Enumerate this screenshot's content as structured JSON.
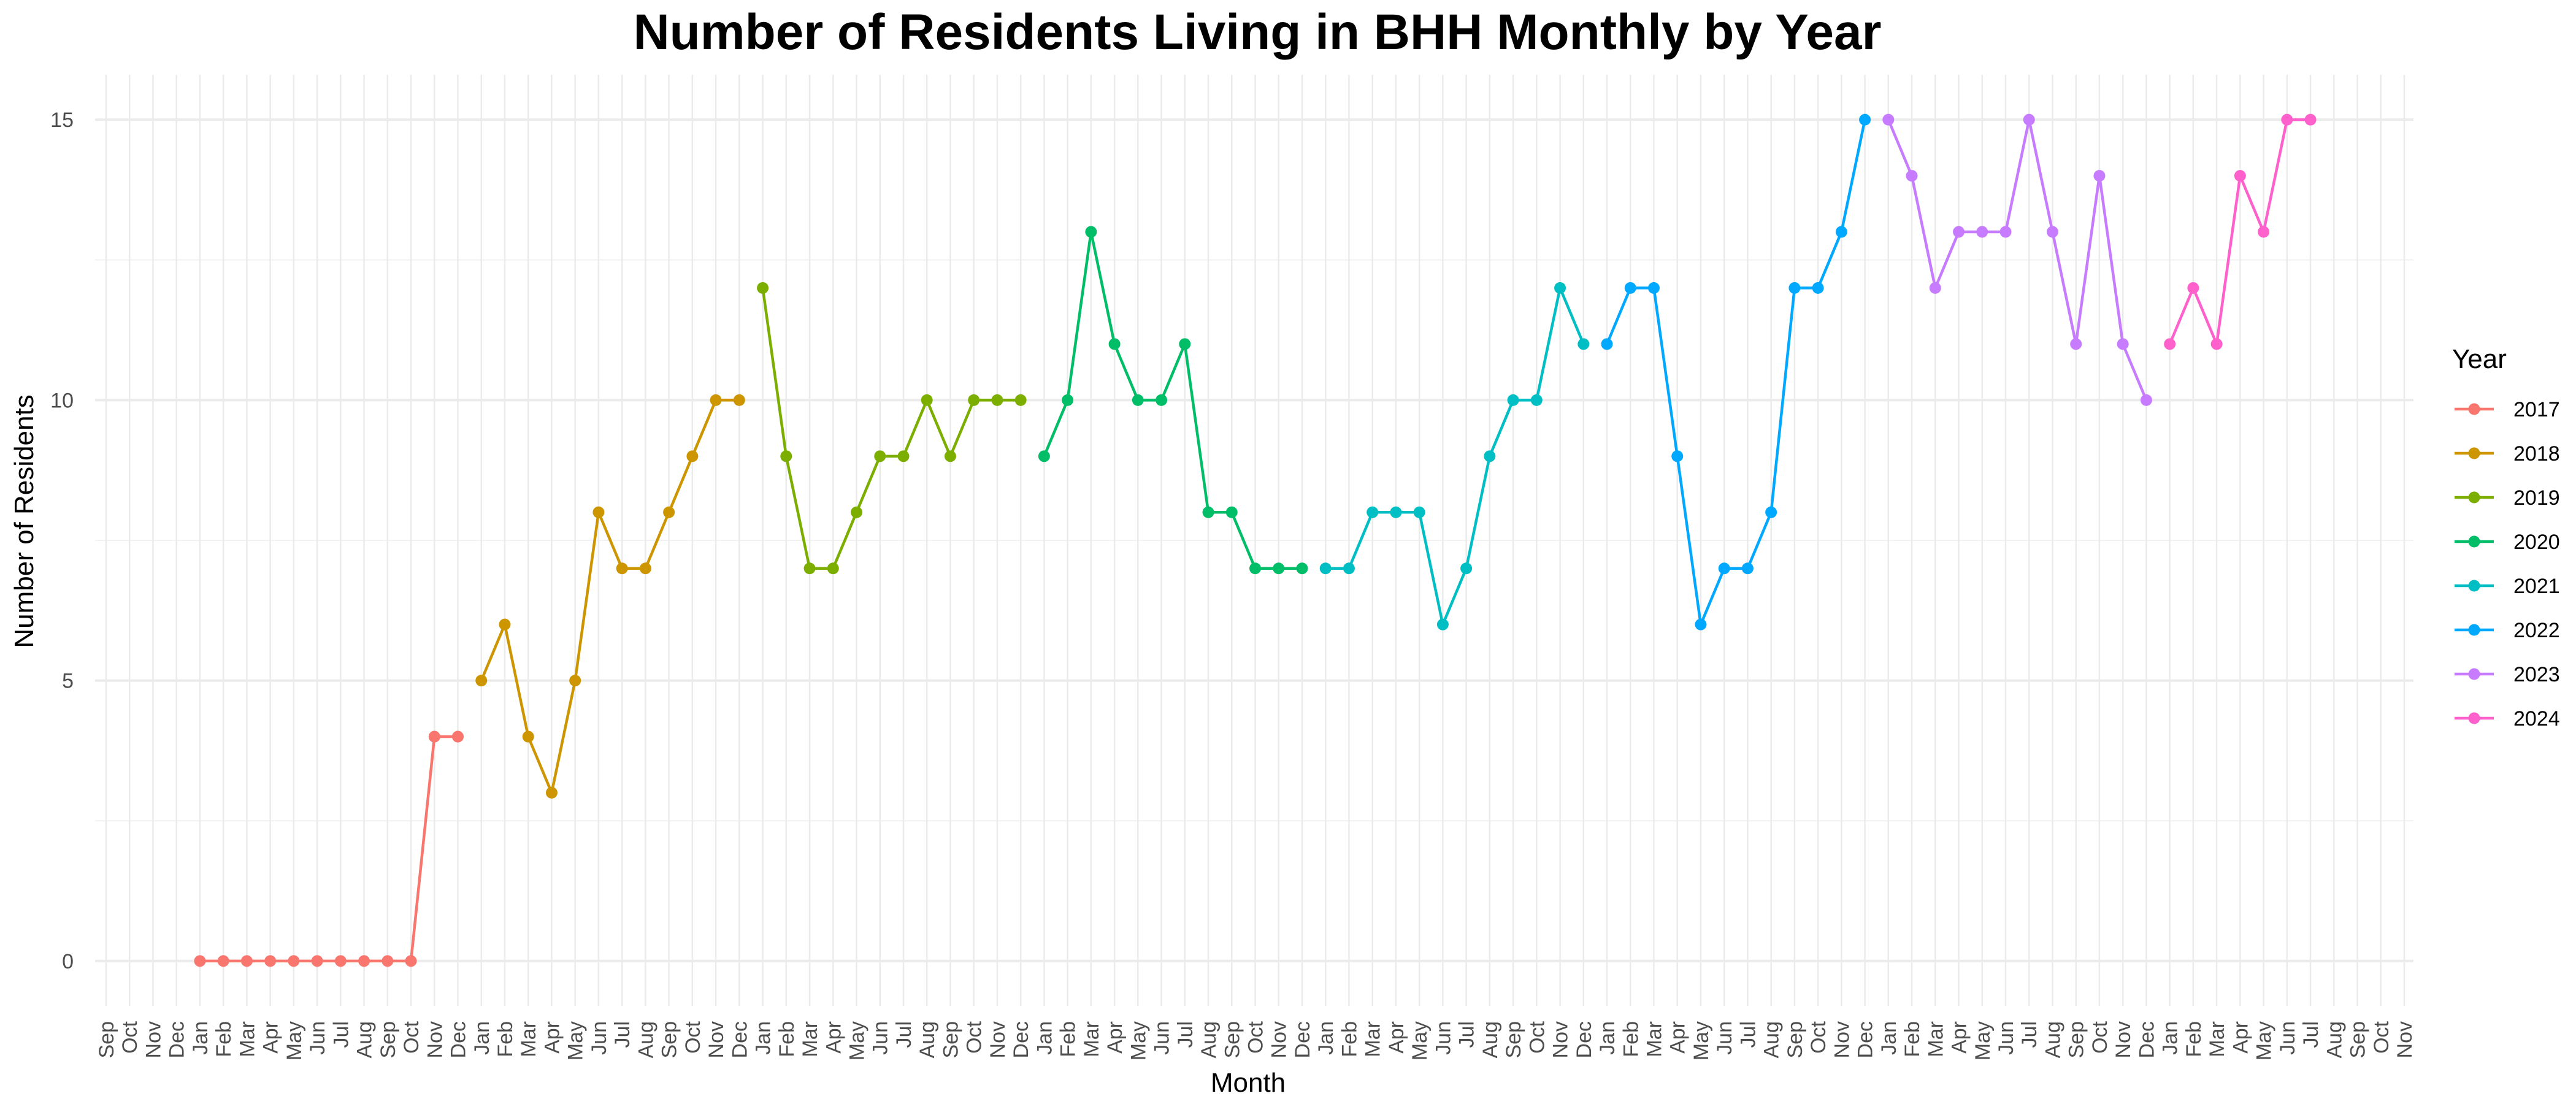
{
  "chart_data": {
    "type": "line",
    "title": "Number of Residents Living in BHH Monthly by Year",
    "xlabel": "Month",
    "ylabel": "Number of Residents",
    "y_ticks": [
      "0",
      "5",
      "10",
      "15"
    ],
    "ylim": [
      -0.8,
      15.8
    ],
    "grid": true,
    "legend": {
      "title": "Year",
      "placement": "right"
    },
    "x_tick_labels": [
      "Sep",
      "Oct",
      "Nov",
      "Dec",
      "Jan",
      "Feb",
      "Mar",
      "Apr",
      "May",
      "Jun",
      "Jul",
      "Aug",
      "Sep",
      "Oct",
      "Nov",
      "Dec",
      "Jan",
      "Feb",
      "Mar",
      "Apr",
      "May",
      "Jun",
      "Jul",
      "Aug",
      "Sep",
      "Oct",
      "Nov",
      "Dec",
      "Jan",
      "Feb",
      "Mar",
      "Apr",
      "May",
      "Jun",
      "Jul",
      "Aug",
      "Sep",
      "Oct",
      "Nov",
      "Dec",
      "Jan",
      "Feb",
      "Mar",
      "Apr",
      "May",
      "Jun",
      "Jul",
      "Aug",
      "Sep",
      "Oct",
      "Nov",
      "Dec",
      "Jan",
      "Feb",
      "Mar",
      "Apr",
      "May",
      "Jun",
      "Jul",
      "Aug",
      "Sep",
      "Oct",
      "Nov",
      "Dec",
      "Jan",
      "Feb",
      "Mar",
      "Apr",
      "May",
      "Jun",
      "Jul",
      "Aug",
      "Sep",
      "Oct",
      "Nov",
      "Dec",
      "Jan",
      "Feb",
      "Mar",
      "Apr",
      "May",
      "Jun",
      "Jul",
      "Aug",
      "Sep",
      "Oct",
      "Nov",
      "Dec",
      "Jan",
      "Feb",
      "Mar",
      "Apr",
      "May",
      "Jun",
      "Jul",
      "Aug",
      "Sep",
      "Oct",
      "Nov"
    ],
    "series": [
      {
        "name": "2017",
        "color": "#F8766D",
        "start_index": 4,
        "values": [
          0,
          0,
          0,
          0,
          0,
          0,
          0,
          0,
          0,
          0,
          4,
          4
        ]
      },
      {
        "name": "2018",
        "color": "#CD9600",
        "start_index": 16,
        "values": [
          5,
          6,
          4,
          3,
          5,
          8,
          7,
          7,
          8,
          9,
          10,
          10
        ]
      },
      {
        "name": "2019",
        "color": "#7CAE00",
        "start_index": 28,
        "values": [
          12,
          9,
          7,
          7,
          8,
          9,
          9,
          10,
          9,
          10,
          10,
          10
        ]
      },
      {
        "name": "2020",
        "color": "#00BE67",
        "start_index": 40,
        "values": [
          9,
          10,
          13,
          11,
          10,
          10,
          11,
          8,
          8,
          7,
          7,
          7
        ]
      },
      {
        "name": "2021",
        "color": "#00BFC4",
        "start_index": 52,
        "values": [
          7,
          7,
          8,
          8,
          8,
          6,
          7,
          9,
          10,
          10,
          12,
          11
        ]
      },
      {
        "name": "2022",
        "color": "#00A9FF",
        "start_index": 64,
        "values": [
          11,
          12,
          12,
          9,
          6,
          7,
          7,
          8,
          12,
          12,
          13,
          15
        ]
      },
      {
        "name": "2023",
        "color": "#C77CFF",
        "start_index": 76,
        "values": [
          15,
          14,
          12,
          13,
          13,
          13,
          15,
          13,
          11,
          14,
          11,
          10
        ]
      },
      {
        "name": "2024",
        "color": "#FF61CC",
        "start_index": 88,
        "values": [
          11,
          12,
          11,
          14,
          13,
          15,
          15
        ]
      }
    ]
  }
}
